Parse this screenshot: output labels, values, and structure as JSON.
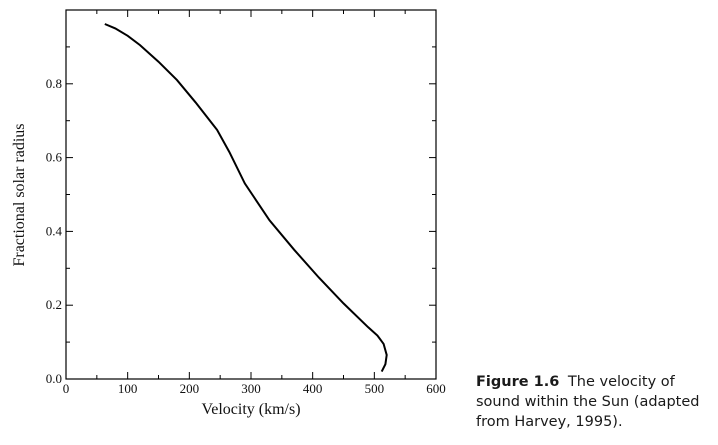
{
  "chart_data": {
    "type": "line",
    "title": "",
    "xlabel": "Velocity (km/s)",
    "ylabel": "Fractional solar radius",
    "xlim": [
      0,
      600
    ],
    "ylim": [
      0,
      1.0
    ],
    "x_ticks": [
      0,
      100,
      200,
      300,
      400,
      500,
      600
    ],
    "x_tick_labels": [
      "0",
      "100",
      "200",
      "300",
      "400",
      "500",
      "600"
    ],
    "y_ticks": [
      0.0,
      0.2,
      0.4,
      0.6,
      0.8
    ],
    "y_tick_labels": [
      "0.0",
      "0.2",
      "0.4",
      "0.6",
      "0.8"
    ],
    "grid": false,
    "series": [
      {
        "name": "Sound velocity",
        "x": [
          63,
          80,
          100,
          120,
          150,
          180,
          210,
          245,
          265,
          290,
          330,
          370,
          410,
          450,
          490,
          505,
          515,
          520,
          518,
          512
        ],
        "y": [
          0.962,
          0.95,
          0.93,
          0.905,
          0.86,
          0.81,
          0.75,
          0.675,
          0.615,
          0.53,
          0.43,
          0.35,
          0.275,
          0.205,
          0.14,
          0.118,
          0.095,
          0.065,
          0.04,
          0.02
        ]
      }
    ]
  },
  "caption": {
    "label": "Figure 1.6",
    "text": "The velocity of sound within the Sun (adapted from Harvey, 1995)."
  }
}
